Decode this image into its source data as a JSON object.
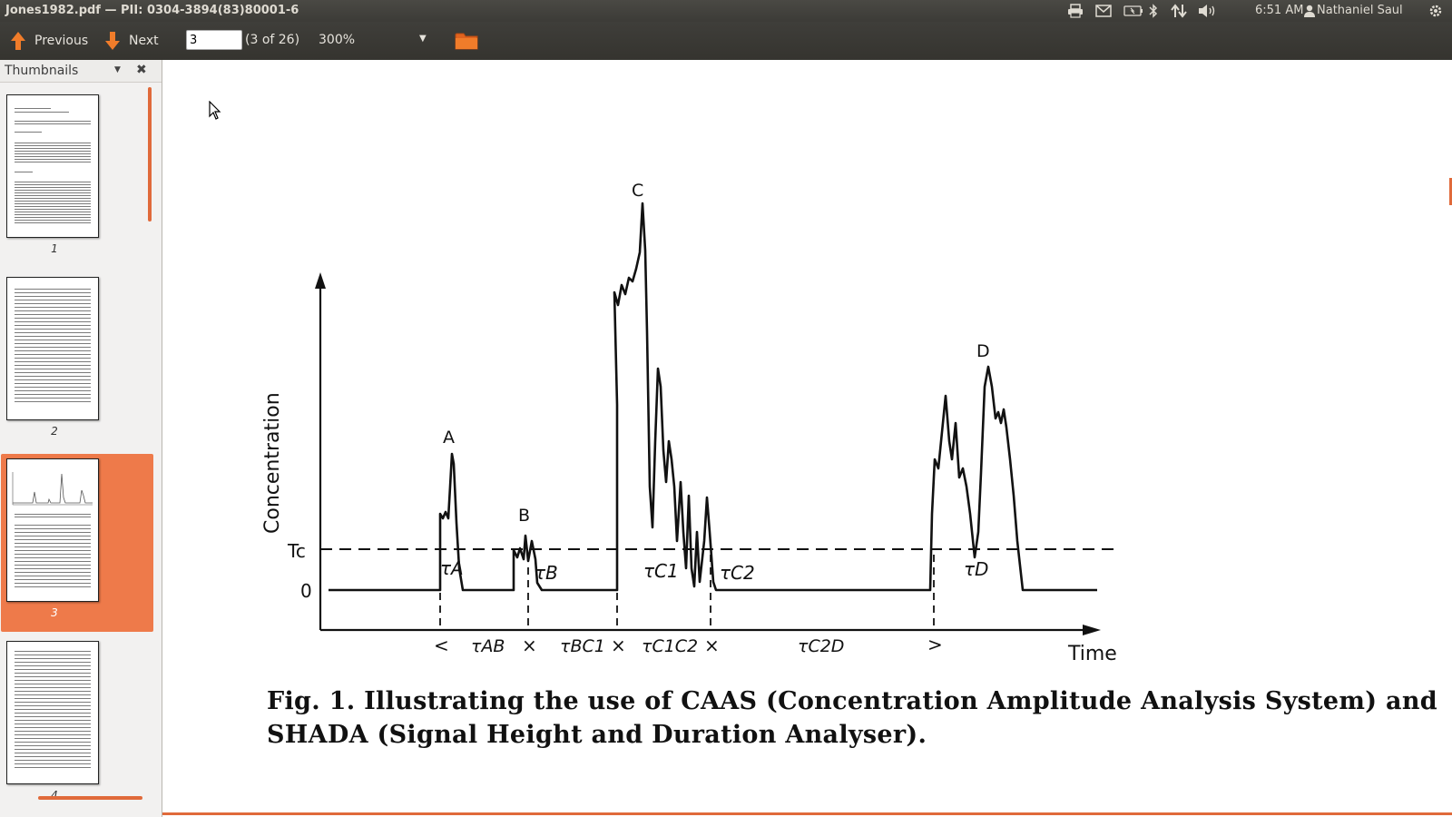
{
  "window": {
    "title": "Jones1982.pdf — PII: 0304-3894(83)80001-6"
  },
  "menubar": {
    "tray_icons": [
      "printer-icon",
      "mail-icon",
      "battery-icon",
      "bluetooth-icon",
      "network-icon",
      "volume-icon"
    ],
    "clock": "6:51 AM",
    "user": "Nathaniel Saul",
    "settings_icon": "gear-icon"
  },
  "toolbar": {
    "previous_label": "Previous",
    "next_label": "Next",
    "page_value": "3",
    "page_count": "(3 of 26)",
    "zoom": "300%",
    "accent": "#f07c2a"
  },
  "sidebar": {
    "title": "Thumbnails",
    "thumbnails": [
      {
        "num": "1"
      },
      {
        "num": "2"
      },
      {
        "num": "3",
        "selected": true
      },
      {
        "num": "4"
      }
    ]
  },
  "document": {
    "figure": {
      "y_axis_label": "Concentration",
      "x_axis_label": "Time",
      "threshold_label": "Tc",
      "zero_label": "0",
      "peak_labels": [
        "A",
        "B",
        "C",
        "D"
      ],
      "duration_labels": [
        "τA",
        "τB",
        "τC1",
        "τC2",
        "τD"
      ],
      "interval_labels": [
        "τAB",
        "τBC1",
        "τC1C2",
        "τC2D"
      ],
      "marker_labels": [
        "<",
        "×",
        "×",
        "×",
        ">"
      ]
    },
    "caption": "Fig. 1. Illustrating the use of CAAS (Concentration Amplitude Analysis System) and SHADA (Signal Height and Duration Analyser)."
  }
}
